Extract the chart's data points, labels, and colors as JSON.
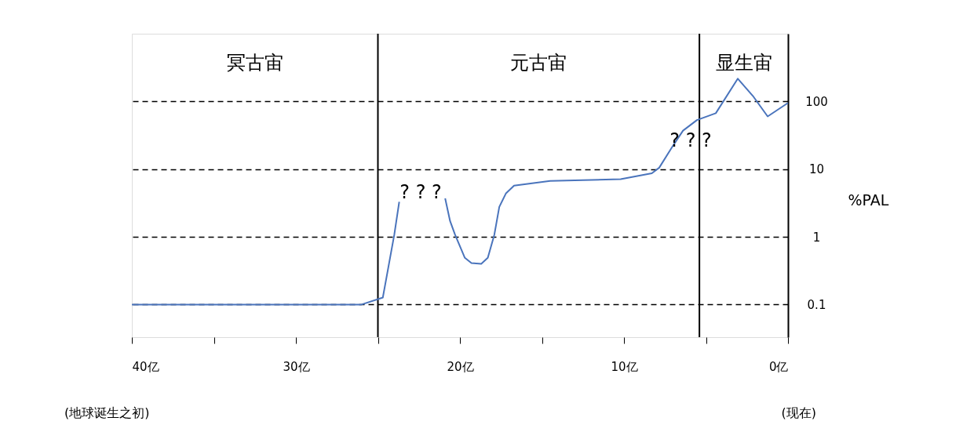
{
  "chart_data": {
    "type": "line",
    "ylabel": "%PAL",
    "log": "y",
    "grid": "y",
    "line_style": "solid",
    "marker": "none",
    "xlim": [
      40,
      0
    ],
    "ylim": [
      0.033,
      1000
    ],
    "xticks": [
      {
        "value": 40,
        "label": "40亿"
      },
      {
        "value": 35,
        "label": null
      },
      {
        "value": 30,
        "label": "30亿"
      },
      {
        "value": 25,
        "label": null
      },
      {
        "value": 20,
        "label": "20亿"
      },
      {
        "value": 15,
        "label": null
      },
      {
        "value": 10,
        "label": "10亿"
      },
      {
        "value": 5,
        "label": null
      },
      {
        "value": 0,
        "label": "0亿"
      }
    ],
    "yticks": [
      0.1,
      1,
      10,
      100
    ],
    "x": [
      40,
      26.0,
      24.7,
      24.35,
      24.0,
      23.7,
      22.3,
      20.9,
      20.6,
      20.3,
      19.7,
      19.3,
      18.7,
      18.3,
      17.9,
      17.6,
      17.2,
      16.7,
      14.5,
      10.2,
      8.3,
      7.85,
      7.1,
      6.4,
      5.55,
      4.4,
      3.06,
      2.1,
      1.24,
      0
    ],
    "series": [
      {
        "color": "#4a74bc",
        "values": [
          0.1,
          0.1,
          0.127,
          0.37,
          1.08,
          3.3,
          null,
          3.7,
          1.71,
          1.08,
          0.49,
          0.41,
          0.4,
          0.49,
          1.08,
          2.77,
          4.36,
          5.7,
          6.7,
          7.1,
          8.7,
          10.5,
          20.5,
          37,
          53,
          67,
          217,
          117,
          60,
          95
        ]
      }
    ],
    "ref_lines": [
      {
        "axis": "x",
        "value": 25,
        "color": "#000000",
        "line_style": "solid"
      },
      {
        "axis": "x",
        "value": 5.4,
        "color": "#000000",
        "line_style": "solid"
      }
    ],
    "annotations": [
      "冥古宙",
      "元古宙",
      "显生宙",
      "? ? ?",
      "? ? ?",
      "(地球诞生之初)",
      "(现在)"
    ]
  }
}
